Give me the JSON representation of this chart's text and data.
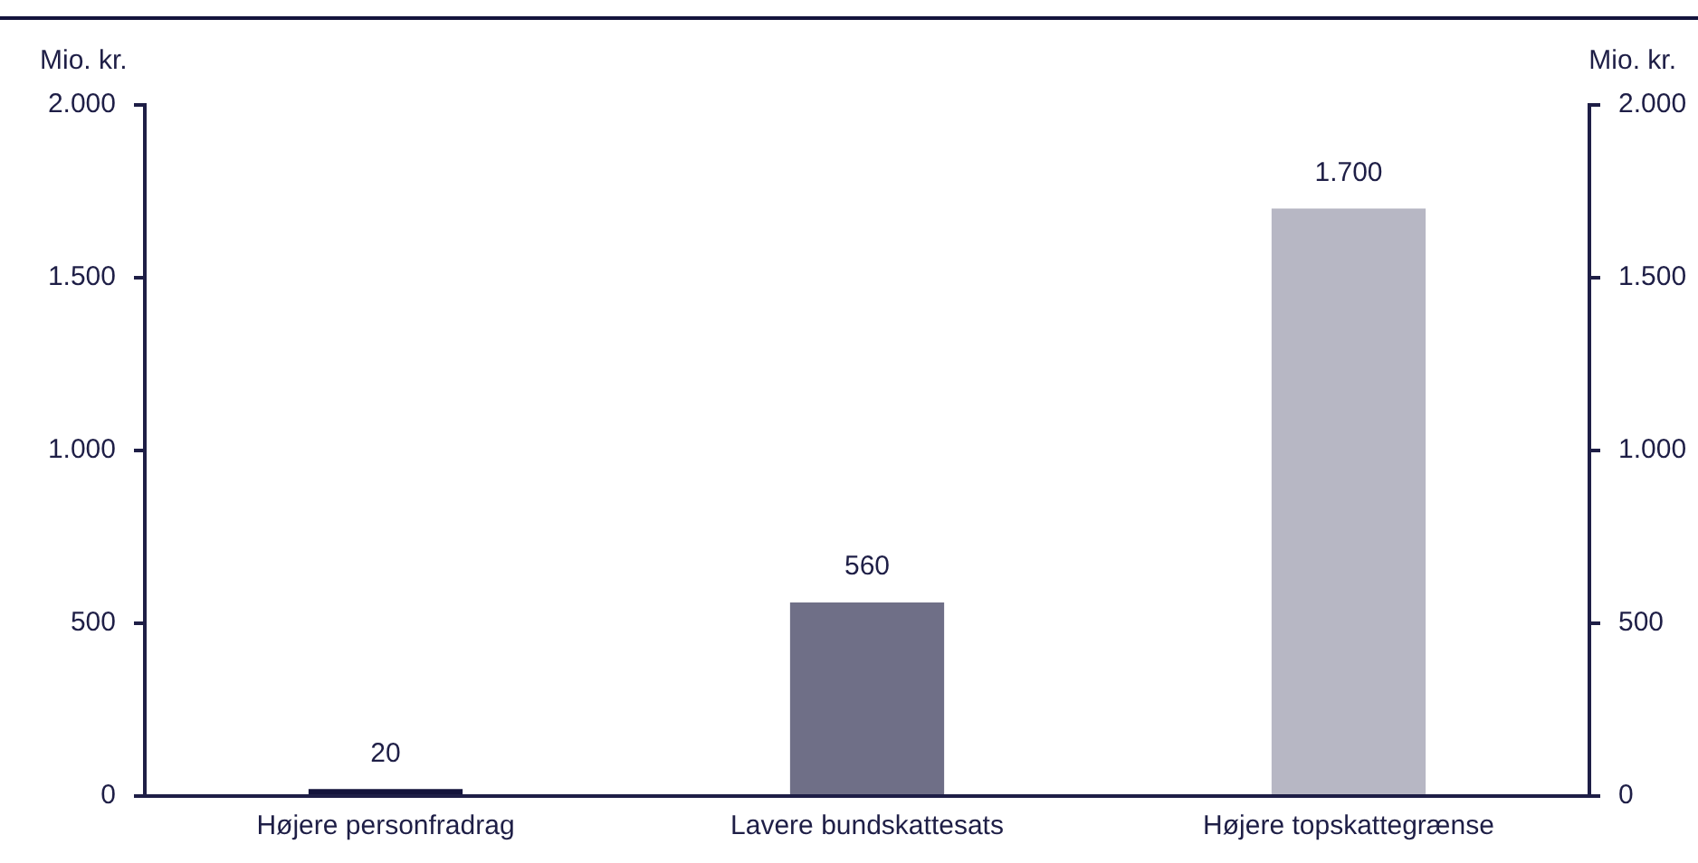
{
  "chart_data": {
    "type": "bar",
    "categories": [
      "Højere personfradrag",
      "Lavere bundskattesats",
      "Højere topskattegrænse"
    ],
    "values": [
      20,
      560,
      1700
    ],
    "colors": [
      "#14143c",
      "#6f6f87",
      "#b7b7c4"
    ],
    "value_labels": [
      "20",
      "560",
      "1.700"
    ],
    "ylabel": "Mio. kr.",
    "y2label": "Mio. kr.",
    "ylim": [
      0,
      2000
    ],
    "yticks": [
      0,
      500,
      {
        "value": 1000,
        "label": "1.000"
      },
      {
        "value": 1500,
        "label": "1.500"
      },
      {
        "value": 2000,
        "label": "2.000"
      }
    ],
    "y2lim": [
      0,
      2000
    ],
    "y2ticks": [
      0,
      500,
      {
        "value": 1000,
        "label": "1.000"
      },
      {
        "value": 1500,
        "label": "1.500"
      },
      {
        "value": 2000,
        "label": "2.000"
      }
    ],
    "grid": false,
    "legend": false
  }
}
